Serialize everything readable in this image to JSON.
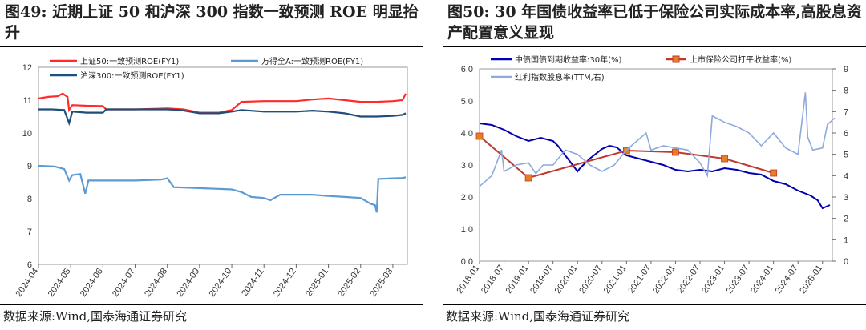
{
  "left": {
    "title_prefix": "图49:",
    "title_text": "近期上证 50 和沪深 300 指数一致预测 ROE 明显抬升",
    "source": "数据来源:Wind,国泰海通证券研究",
    "chart_data": {
      "type": "line",
      "ylim": [
        6,
        12
      ],
      "yticks": [
        6,
        7,
        8,
        9,
        10,
        11,
        12
      ],
      "x_categories": [
        "2024-04",
        "2024-05",
        "2024-06",
        "2024-07",
        "2024-08",
        "2024-09",
        "2024-10",
        "2024-11",
        "2024-12",
        "2025-01",
        "2025-02",
        "2025-03"
      ],
      "legend_position": "top",
      "series": [
        {
          "name": "上证50:一致预测ROE(FY1)",
          "color": "#ff2a2a",
          "points": [
            [
              0,
              11.05
            ],
            [
              0.3,
              11.1
            ],
            [
              0.6,
              11.12
            ],
            [
              0.75,
              11.2
            ],
            [
              0.9,
              11.1
            ],
            [
              0.95,
              10.7
            ],
            [
              1.05,
              10.85
            ],
            [
              1.5,
              10.83
            ],
            [
              2,
              10.82
            ],
            [
              2.1,
              10.72
            ],
            [
              3,
              10.72
            ],
            [
              4,
              10.75
            ],
            [
              4.5,
              10.72
            ],
            [
              5,
              10.62
            ],
            [
              5.6,
              10.62
            ],
            [
              6,
              10.7
            ],
            [
              6.3,
              10.95
            ],
            [
              7,
              10.97
            ],
            [
              8,
              10.97
            ],
            [
              8.5,
              11.02
            ],
            [
              9,
              11.05
            ],
            [
              9.5,
              11.0
            ],
            [
              10,
              10.95
            ],
            [
              10.5,
              10.95
            ],
            [
              11,
              10.97
            ],
            [
              11.3,
              11.0
            ],
            [
              11.4,
              11.2
            ]
          ]
        },
        {
          "name": "万得全A:一致预测ROE(FY1)",
          "color": "#5b9bd5",
          "points": [
            [
              0,
              9.0
            ],
            [
              0.5,
              8.98
            ],
            [
              0.8,
              8.9
            ],
            [
              0.95,
              8.55
            ],
            [
              1.05,
              8.72
            ],
            [
              1.3,
              8.75
            ],
            [
              1.45,
              8.15
            ],
            [
              1.55,
              8.55
            ],
            [
              2,
              8.55
            ],
            [
              3,
              8.55
            ],
            [
              3.8,
              8.58
            ],
            [
              4,
              8.62
            ],
            [
              4.2,
              8.35
            ],
            [
              5,
              8.32
            ],
            [
              5.5,
              8.3
            ],
            [
              6,
              8.28
            ],
            [
              6.3,
              8.2
            ],
            [
              6.6,
              8.05
            ],
            [
              7,
              8.02
            ],
            [
              7.2,
              7.95
            ],
            [
              7.5,
              8.12
            ],
            [
              8,
              8.12
            ],
            [
              8.5,
              8.12
            ],
            [
              9,
              8.08
            ],
            [
              9.5,
              8.05
            ],
            [
              10,
              8.02
            ],
            [
              10.3,
              7.85
            ],
            [
              10.45,
              7.8
            ],
            [
              10.5,
              7.58
            ],
            [
              10.55,
              8.6
            ],
            [
              11,
              8.62
            ],
            [
              11.3,
              8.63
            ],
            [
              11.4,
              8.65
            ]
          ]
        },
        {
          "name": "沪深300:一致预测ROE(FY1)",
          "color": "#1f4e79",
          "points": [
            [
              0,
              10.72
            ],
            [
              0.4,
              10.72
            ],
            [
              0.8,
              10.7
            ],
            [
              0.95,
              10.3
            ],
            [
              1.05,
              10.65
            ],
            [
              1.5,
              10.62
            ],
            [
              2,
              10.62
            ],
            [
              2.1,
              10.72
            ],
            [
              3,
              10.72
            ],
            [
              4,
              10.72
            ],
            [
              4.4,
              10.7
            ],
            [
              5,
              10.6
            ],
            [
              5.6,
              10.6
            ],
            [
              6,
              10.65
            ],
            [
              6.3,
              10.7
            ],
            [
              7,
              10.65
            ],
            [
              8,
              10.65
            ],
            [
              8.5,
              10.68
            ],
            [
              9,
              10.65
            ],
            [
              9.5,
              10.6
            ],
            [
              10,
              10.5
            ],
            [
              10.5,
              10.5
            ],
            [
              11,
              10.52
            ],
            [
              11.3,
              10.55
            ],
            [
              11.4,
              10.6
            ]
          ]
        }
      ]
    }
  },
  "right": {
    "title_prefix": "图50:",
    "title_text": "30 年国债收益率已低于保险公司实际成本率,高股息资产配置意义显现",
    "source": "数据来源:Wind,国泰海通证券研究",
    "chart_data": {
      "type": "line",
      "ylim_left": [
        0,
        6
      ],
      "yticks_left": [
        "0.0",
        "1.0",
        "2.0",
        "3.0",
        "4.0",
        "5.0",
        "6.0"
      ],
      "ylim_right": [
        0,
        9
      ],
      "yticks_right": [
        0,
        1,
        2,
        3,
        4,
        5,
        6,
        7,
        8,
        9
      ],
      "x_categories": [
        "2018-01",
        "2018-07",
        "2019-01",
        "2019-07",
        "2020-01",
        "2020-07",
        "2021-01",
        "2021-07",
        "2022-01",
        "2022-07",
        "2023-01",
        "2023-07",
        "2024-01",
        "2024-07",
        "2025-01"
      ],
      "legend_position": "top",
      "series": [
        {
          "name": "中债国债到期收益率:30年(%)",
          "color": "#0000b0",
          "axis": "left",
          "points": [
            [
              0,
              4.3
            ],
            [
              0.5,
              4.25
            ],
            [
              1,
              4.1
            ],
            [
              1.5,
              3.9
            ],
            [
              2,
              3.75
            ],
            [
              2.5,
              3.85
            ],
            [
              3,
              3.75
            ],
            [
              3.2,
              3.6
            ],
            [
              3.6,
              3.2
            ],
            [
              4,
              2.8
            ],
            [
              4.1,
              2.9
            ],
            [
              4.5,
              3.2
            ],
            [
              5,
              3.5
            ],
            [
              5.3,
              3.6
            ],
            [
              5.6,
              3.55
            ],
            [
              6,
              3.3
            ],
            [
              6.5,
              3.2
            ],
            [
              7,
              3.1
            ],
            [
              7.5,
              3.0
            ],
            [
              8,
              2.85
            ],
            [
              8.5,
              2.8
            ],
            [
              9,
              2.85
            ],
            [
              9.5,
              2.8
            ],
            [
              10,
              2.9
            ],
            [
              10.5,
              2.85
            ],
            [
              11,
              2.75
            ],
            [
              11.5,
              2.7
            ],
            [
              12,
              2.5
            ],
            [
              12.5,
              2.4
            ],
            [
              13,
              2.2
            ],
            [
              13.5,
              2.05
            ],
            [
              13.8,
              1.9
            ],
            [
              14,
              1.65
            ],
            [
              14.3,
              1.75
            ]
          ]
        },
        {
          "name": "上市保险公司打平收益率(%)",
          "color": "#c0392b",
          "axis": "left",
          "markers": true,
          "points": [
            [
              0,
              3.9
            ],
            [
              2,
              2.6
            ],
            [
              6,
              3.45
            ],
            [
              8,
              3.4
            ],
            [
              10,
              3.2
            ],
            [
              12,
              2.75
            ]
          ]
        },
        {
          "name": "红利指数股息率(TTM,右)",
          "color": "#8ea9db",
          "axis": "right",
          "points": [
            [
              0,
              3.5
            ],
            [
              0.5,
              4.0
            ],
            [
              0.9,
              5.2
            ],
            [
              1.0,
              4.2
            ],
            [
              1.5,
              4.5
            ],
            [
              2,
              4.6
            ],
            [
              2.3,
              4.1
            ],
            [
              2.6,
              4.5
            ],
            [
              3,
              4.5
            ],
            [
              3.5,
              5.2
            ],
            [
              4,
              5.0
            ],
            [
              4.5,
              4.5
            ],
            [
              5,
              4.2
            ],
            [
              5.5,
              4.5
            ],
            [
              6,
              5.2
            ],
            [
              6.5,
              5.7
            ],
            [
              6.8,
              6.0
            ],
            [
              7,
              5.2
            ],
            [
              7.5,
              5.4
            ],
            [
              8,
              5.3
            ],
            [
              8.5,
              5.2
            ],
            [
              9,
              4.6
            ],
            [
              9.3,
              4.0
            ],
            [
              9.5,
              6.8
            ],
            [
              10,
              6.5
            ],
            [
              10.5,
              6.3
            ],
            [
              11,
              6.0
            ],
            [
              11.5,
              5.4
            ],
            [
              12,
              6.0
            ],
            [
              12.5,
              5.3
            ],
            [
              13,
              5.0
            ],
            [
              13.3,
              7.9
            ],
            [
              13.4,
              5.8
            ],
            [
              13.6,
              5.2
            ],
            [
              14,
              5.3
            ],
            [
              14.2,
              6.4
            ],
            [
              14.5,
              6.7
            ]
          ]
        }
      ]
    }
  }
}
